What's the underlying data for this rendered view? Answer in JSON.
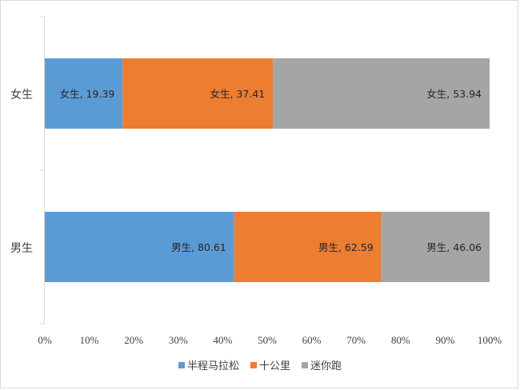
{
  "chart_data": {
    "type": "bar",
    "orientation": "horizontal",
    "stacked": "percent",
    "categories": [
      "女生",
      "男生"
    ],
    "series": [
      {
        "name": "半程马拉松",
        "color": "#5b9bd5",
        "values": [
          19.39,
          80.61
        ]
      },
      {
        "name": "十公里",
        "color": "#ed7d31",
        "values": [
          37.41,
          62.59
        ]
      },
      {
        "name": "迷你跑",
        "color": "#a5a5a5",
        "values": [
          53.94,
          46.06
        ]
      }
    ],
    "data_labels": [
      [
        "女生, 19.39",
        "男生, 80.61"
      ],
      [
        "女生, 37.41",
        "男生, 62.59"
      ],
      [
        "女生, 53.94",
        "男生, 46.06"
      ]
    ],
    "xlim": [
      0,
      100
    ],
    "x_ticks": [
      "0%",
      "10%",
      "20%",
      "30%",
      "40%",
      "50%",
      "60%",
      "70%",
      "80%",
      "90%",
      "100%"
    ],
    "grid": false,
    "legend": "bottom"
  }
}
